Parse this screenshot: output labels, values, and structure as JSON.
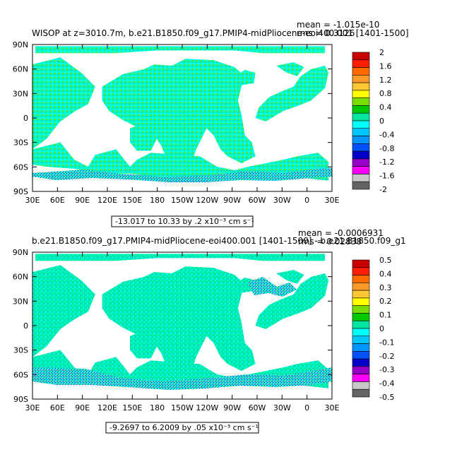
{
  "panels": [
    {
      "title": "WISOP at z=3010.7m, b.e21.B1850.f09_g17.PMIP4-midPliocene-eoi400.001 [1401-1500]",
      "mean": "mean = -1.015e-10",
      "rms": "rms = 0.3126",
      "range_label": "-13.017 to 10.33 by .2 x10⁻³ cm s⁻¹",
      "colorbar_labels": [
        "2",
        "1.6",
        "1.2",
        "0.8",
        "0.4",
        "0",
        "-0.4",
        "-0.8",
        "-1.2",
        "-1.6",
        "-2"
      ]
    },
    {
      "title": "b.e21.B1850.f09_g17.PMIP4-midPliocene-eoi400.001 [1401-1500] - b.e21.B1850.f09_g1",
      "mean": "mean = -0.0006931",
      "rms": "rms = 0.02838",
      "range_label": "-9.2697 to 6.2009 by .05 x10⁻³ cm s⁻¹",
      "colorbar_labels": [
        "0.5",
        "0.4",
        "0.3",
        "0.2",
        "0.1",
        "0",
        "-0.1",
        "-0.2",
        "-0.3",
        "-0.4",
        "-0.5"
      ]
    }
  ],
  "axes": {
    "x_ticks": [
      "30E",
      "60E",
      "90E",
      "120E",
      "150E",
      "180",
      "150W",
      "120W",
      "90W",
      "60W",
      "30W",
      "0",
      "30E"
    ],
    "y_ticks": [
      "90N",
      "60N",
      "30N",
      "0",
      "30S",
      "60S",
      "90S"
    ]
  },
  "colorbar_colors": [
    "#c80000",
    "#ff1e00",
    "#ff6a00",
    "#ff9a28",
    "#ffc832",
    "#ffff00",
    "#78dc00",
    "#00c800",
    "#00e6a0",
    "#00ffff",
    "#00c8ff",
    "#0096ff",
    "#0050ff",
    "#0000c8",
    "#9600c8",
    "#ff00ff",
    "#c8c8c8",
    "#646464"
  ],
  "chart_data": [
    {
      "type": "heatmap",
      "title": "WISOP at z=3010.7m, b.e21.B1850.f09_g17.PMIP4-midPliocene-eoi400.001 [1401-1500]",
      "x_range": [
        "30E",
        "30E"
      ],
      "y_range": [
        "90S",
        "90N"
      ],
      "color_levels": [
        -2,
        -1.6,
        -1.2,
        -0.8,
        -0.4,
        0,
        0.4,
        0.8,
        1.2,
        1.6,
        2
      ]
    },
    {
      "type": "heatmap",
      "title": "b.e21.B1850.f09_g17.PMIP4-midPliocene-eoi400.001 [1401-1500] - b.e21.B1850.f09_g1",
      "x_range": [
        "30E",
        "30E"
      ],
      "y_range": [
        "90S",
        "90N"
      ],
      "color_levels": [
        -0.5,
        -0.4,
        -0.3,
        -0.2,
        -0.1,
        0,
        0.1,
        0.2,
        0.3,
        0.4,
        0.5
      ]
    }
  ]
}
